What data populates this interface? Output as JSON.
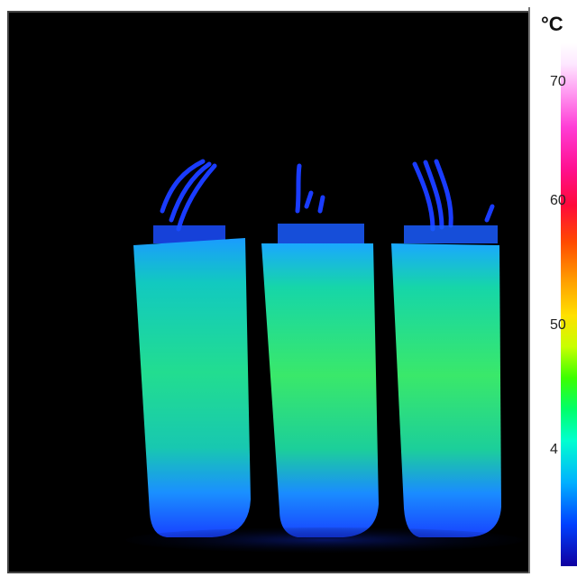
{
  "scale": {
    "unit": "°C",
    "ticks": [
      {
        "label": "70"
      },
      {
        "label": "60"
      },
      {
        "label": "50"
      },
      {
        "label": "4"
      }
    ]
  },
  "colors": {
    "background": "#000000",
    "cell_body": "#1ec8a0",
    "cell_top": "#1a8cff",
    "cell_bottom": "#1a50ff",
    "wires": "#1a3cff"
  }
}
